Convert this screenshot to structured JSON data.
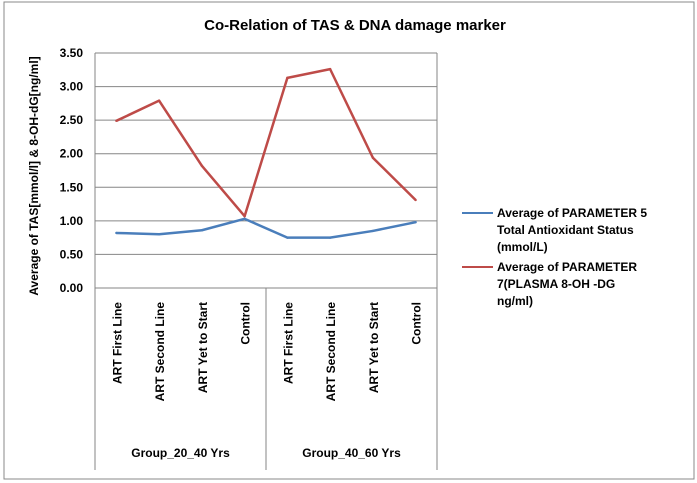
{
  "chart_data": {
    "type": "line",
    "title": "Co-Relation of TAS & DNA damage marker",
    "ylabel": "Average of TAS[mmol/l] & 8-OH-dG[ng/ml]",
    "xlabel": "",
    "ylim": [
      0,
      3.5
    ],
    "yticks": [
      "0.00",
      "0.50",
      "1.00",
      "1.50",
      "2.00",
      "2.50",
      "3.00",
      "3.50"
    ],
    "grid": true,
    "legend_position": "right",
    "categories": [
      "ART First Line",
      "ART Second Line",
      "ART Yet to Start",
      "Control",
      "ART First Line",
      "ART Second Line",
      "ART Yet to Start",
      "Control"
    ],
    "groups": [
      "Group_20_40 Yrs",
      "Group_40_60 Yrs"
    ],
    "series": [
      {
        "name": "Average of PARAMETER  5 Total Antioxidant Status (mmol/L)",
        "legend_lines": [
          "Average of PARAMETER  5",
          "Total Antioxidant Status",
          "(mmol/L)"
        ],
        "color": "#4a7ebb",
        "values": [
          0.82,
          0.8,
          0.86,
          1.03,
          0.75,
          0.75,
          0.85,
          0.98
        ]
      },
      {
        "name": "Average of PARAMETER 7(PLASMA 8-OH   -DG ng/ml)",
        "legend_lines": [
          "Average of PARAMETER",
          "7(PLASMA 8-OH   -DG",
          "ng/ml)"
        ],
        "color": "#be4b48",
        "values": [
          2.49,
          2.79,
          1.82,
          1.07,
          3.13,
          3.26,
          1.94,
          1.31
        ]
      }
    ]
  }
}
